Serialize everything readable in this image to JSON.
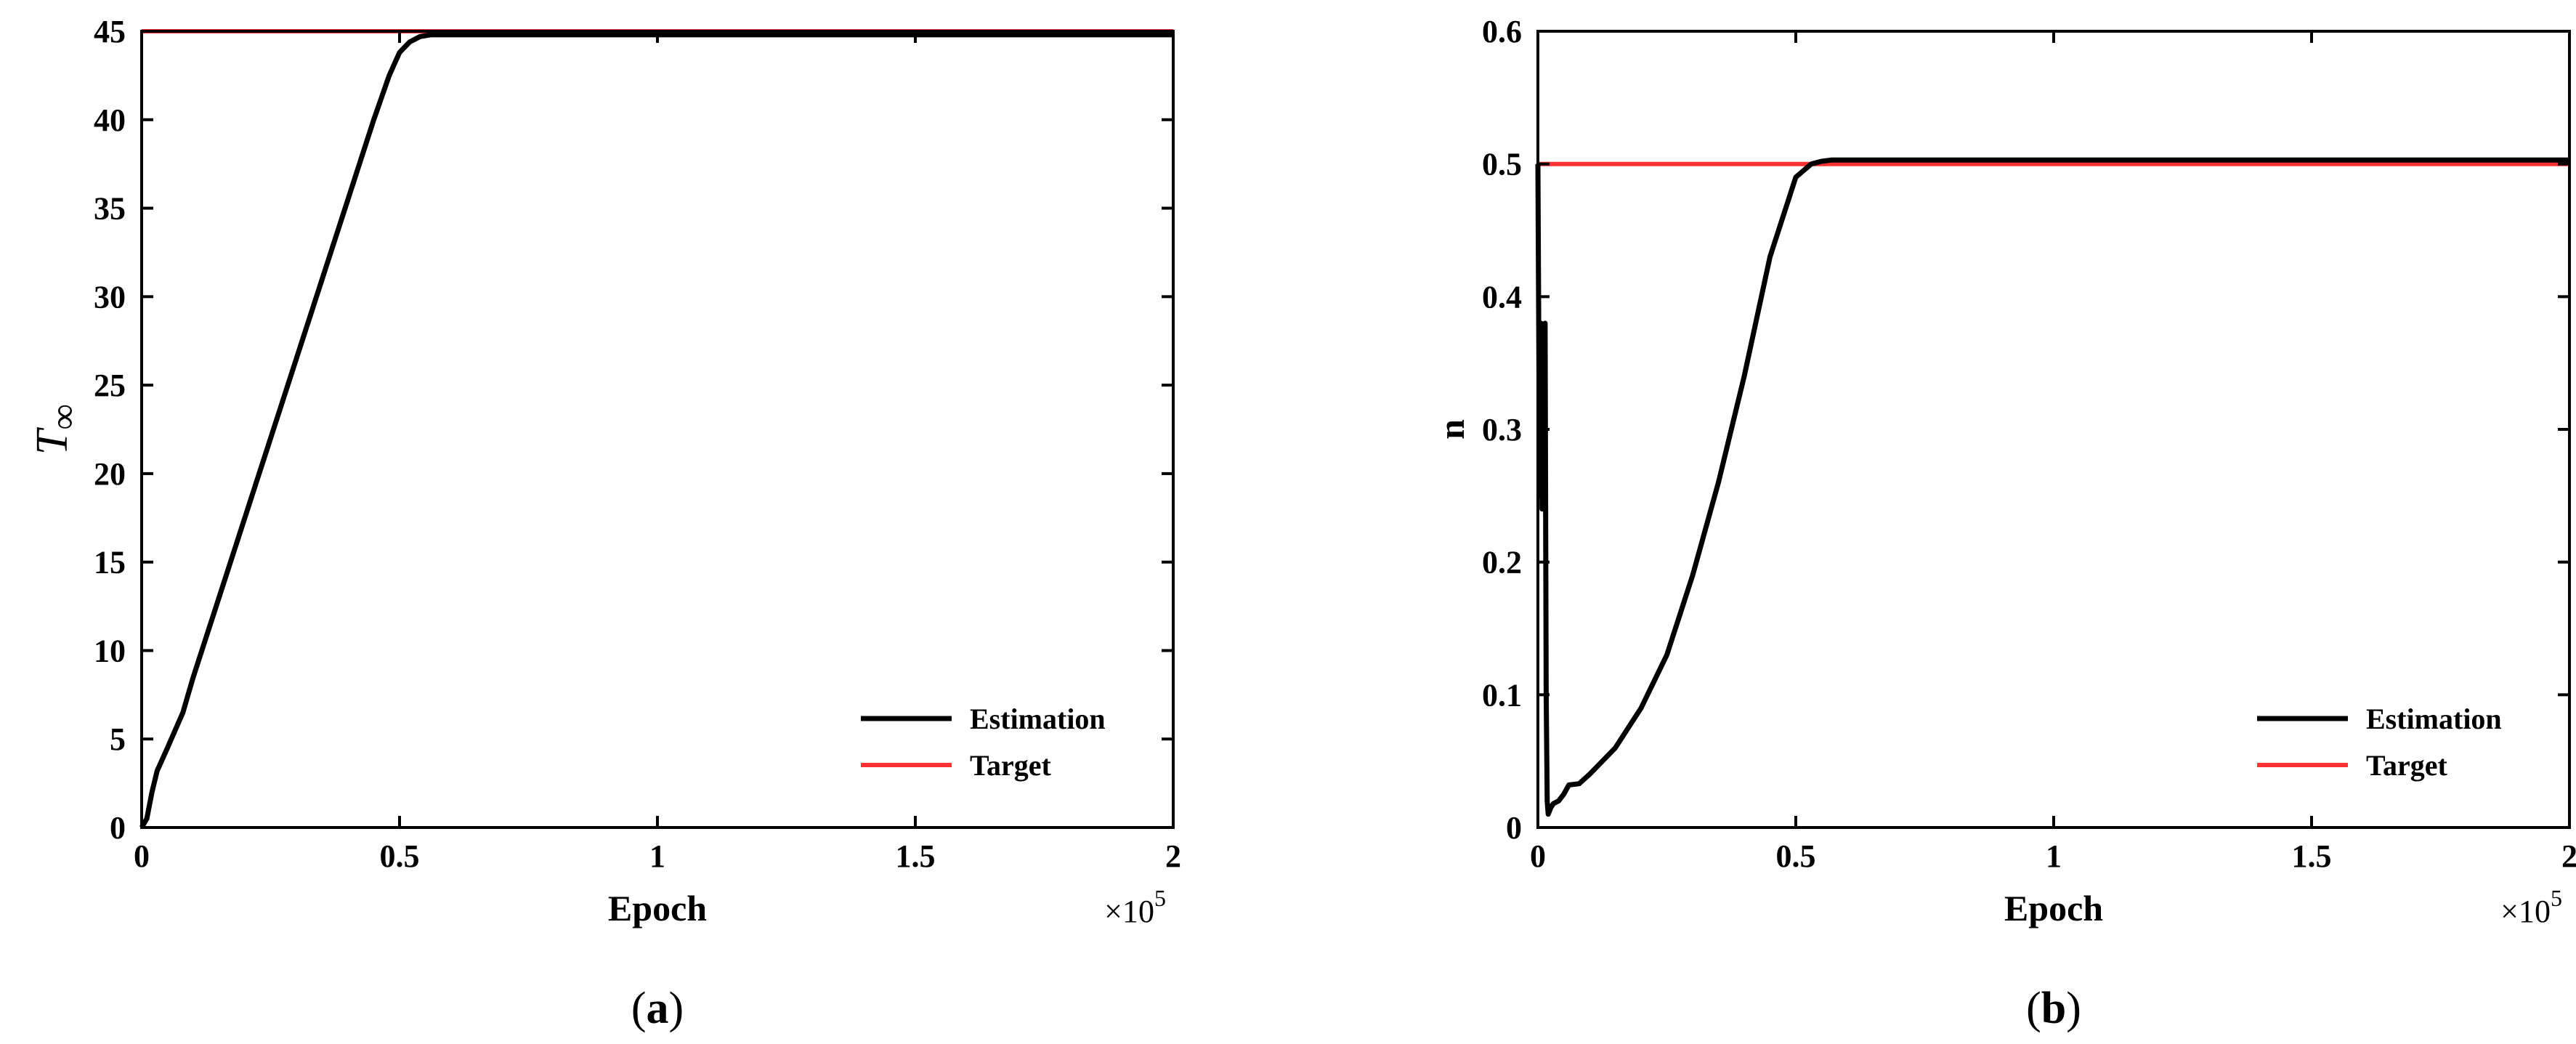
{
  "chart_data": [
    {
      "type": "line",
      "panel_label": "a",
      "xlabel": "Epoch",
      "ylabel": "T∞",
      "x_multiplier": "×10",
      "x_multiplier_exp": "5",
      "xlim": [
        0,
        2
      ],
      "ylim": [
        0,
        45
      ],
      "xticks": [
        0,
        0.5,
        1,
        1.5,
        2
      ],
      "xtick_labels": [
        "0",
        "0.5",
        "1",
        "1.5",
        "2"
      ],
      "yticks": [
        0,
        5,
        10,
        15,
        20,
        25,
        30,
        35,
        40,
        45
      ],
      "ytick_labels": [
        "0",
        "5",
        "10",
        "15",
        "20",
        "25",
        "30",
        "35",
        "40",
        "45"
      ],
      "grid": false,
      "legend_position": "bottom-right",
      "series": [
        {
          "name": "Estimation",
          "color": "#000000",
          "x": [
            0,
            0.01,
            0.02,
            0.03,
            0.05,
            0.08,
            0.1,
            0.15,
            0.2,
            0.25,
            0.3,
            0.35,
            0.4,
            0.45,
            0.48,
            0.5,
            0.52,
            0.54,
            0.56,
            0.58,
            0.6,
            0.8,
            1.0,
            1.5,
            2.0
          ],
          "y": [
            0,
            0.5,
            2.0,
            3.2,
            4.5,
            6.5,
            8.5,
            13.0,
            17.5,
            22.0,
            26.5,
            31.0,
            35.5,
            40.0,
            42.5,
            43.8,
            44.4,
            44.7,
            44.8,
            44.8,
            44.8,
            44.8,
            44.8,
            44.8,
            44.8
          ]
        },
        {
          "name": "Target",
          "color": "#ff3333",
          "x": [
            0,
            2
          ],
          "y": [
            45,
            45
          ]
        }
      ],
      "caption": "(a)"
    },
    {
      "type": "line",
      "panel_label": "b",
      "xlabel": "Epoch",
      "ylabel": "n",
      "x_multiplier": "×10",
      "x_multiplier_exp": "5",
      "xlim": [
        0,
        2
      ],
      "ylim": [
        0,
        0.6
      ],
      "xticks": [
        0,
        0.5,
        1,
        1.5,
        2
      ],
      "xtick_labels": [
        "0",
        "0.5",
        "1",
        "1.5",
        "2"
      ],
      "yticks": [
        0,
        0.1,
        0.2,
        0.3,
        0.4,
        0.5,
        0.6
      ],
      "ytick_labels": [
        "0",
        "0.1",
        "0.2",
        "0.3",
        "0.4",
        "0.5",
        "0.6"
      ],
      "grid": false,
      "legend_position": "bottom-right",
      "series": [
        {
          "name": "Estimation",
          "color": "#000000",
          "x": [
            0,
            0.002,
            0.004,
            0.006,
            0.008,
            0.01,
            0.012,
            0.014,
            0.016,
            0.018,
            0.02,
            0.025,
            0.03,
            0.04,
            0.05,
            0.06,
            0.08,
            0.1,
            0.15,
            0.2,
            0.25,
            0.3,
            0.35,
            0.4,
            0.45,
            0.5,
            0.53,
            0.55,
            0.57,
            0.6,
            0.8,
            1.0,
            1.5,
            2.0
          ],
          "y": [
            0.5,
            0.35,
            0.25,
            0.38,
            0.24,
            0.37,
            0.3,
            0.38,
            0.1,
            0.02,
            0.01,
            0.015,
            0.018,
            0.02,
            0.025,
            0.032,
            0.033,
            0.04,
            0.06,
            0.09,
            0.13,
            0.19,
            0.26,
            0.34,
            0.43,
            0.49,
            0.5,
            0.502,
            0.503,
            0.503,
            0.503,
            0.503,
            0.503,
            0.503
          ]
        },
        {
          "name": "Target",
          "color": "#ff3333",
          "x": [
            0,
            2
          ],
          "y": [
            0.5,
            0.5
          ]
        }
      ],
      "caption": "(b)"
    }
  ]
}
